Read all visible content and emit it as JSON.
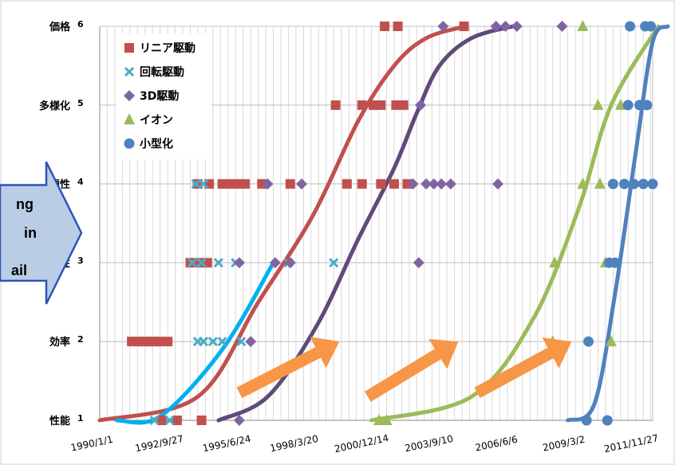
{
  "chart_data": {
    "type": "scatter",
    "title": "",
    "xlabel": "",
    "ylabel": "",
    "xlim": [
      "1990-01-01",
      "2014-06-01"
    ],
    "ylim": [
      1,
      6
    ],
    "grid": true,
    "legend_position": "top-left",
    "x_ticks": [
      "1990/1/1",
      "1992/9/27",
      "1995/6/24",
      "1998/3/20",
      "2000/12/14",
      "2003/9/10",
      "2006/6/6",
      "2009/3/2",
      "2011/11/27"
    ],
    "y_ticks": [
      {
        "value": 1,
        "label": "性能",
        "num": "1"
      },
      {
        "value": 2,
        "label": "効率",
        "num": "2"
      },
      {
        "value": 3,
        "label": "性",
        "num": "3"
      },
      {
        "value": 4,
        "label": "便性",
        "num": "4"
      },
      {
        "value": 5,
        "label": "多様化",
        "num": "5"
      },
      {
        "value": 6,
        "label": "価格",
        "num": "6"
      }
    ],
    "series": [
      {
        "name": "リニア駆動",
        "marker": "square",
        "color": "#c0504d",
        "points": [
          [
            "1991-06-01",
            2
          ],
          [
            "1991-09-01",
            2
          ],
          [
            "1991-12-01",
            2
          ],
          [
            "1992-03-01",
            2
          ],
          [
            "1992-06-01",
            2
          ],
          [
            "1992-09-01",
            2
          ],
          [
            "1993-01-01",
            2
          ],
          [
            "1992-10-01",
            1
          ],
          [
            "1993-06-01",
            1
          ],
          [
            "1994-07-01",
            1
          ],
          [
            "1994-01-01",
            3
          ],
          [
            "1994-06-01",
            3
          ],
          [
            "1994-10-01",
            3
          ],
          [
            "1994-05-01",
            4
          ],
          [
            "1994-11-01",
            4
          ],
          [
            "1995-06-01",
            4
          ],
          [
            "1995-10-01",
            4
          ],
          [
            "1996-02-01",
            4
          ],
          [
            "1996-06-01",
            4
          ],
          [
            "1997-03-01",
            4
          ],
          [
            "1998-06-01",
            4
          ],
          [
            "2000-12-01",
            4
          ],
          [
            "2001-08-01",
            4
          ],
          [
            "2002-06-01",
            4
          ],
          [
            "2003-01-01",
            4
          ],
          [
            "2003-08-01",
            4
          ],
          [
            "2000-06-01",
            5
          ],
          [
            "2001-08-01",
            5
          ],
          [
            "2002-02-01",
            5
          ],
          [
            "2002-06-01",
            5
          ],
          [
            "2003-02-01",
            5
          ],
          [
            "2003-06-01",
            5
          ],
          [
            "2002-08-01",
            6
          ],
          [
            "2003-03-01",
            6
          ],
          [
            "2006-02-01",
            6
          ]
        ]
      },
      {
        "name": "回転駆動",
        "marker": "x",
        "color": "#4bacc6",
        "points": [
          [
            "1992-06-01",
            1
          ],
          [
            "1993-02-01",
            1
          ],
          [
            "1994-05-01",
            2
          ],
          [
            "1994-08-01",
            2
          ],
          [
            "1995-01-01",
            2
          ],
          [
            "1995-06-01",
            2
          ],
          [
            "1996-04-01",
            2
          ],
          [
            "1994-02-01",
            3
          ],
          [
            "1994-07-01",
            3
          ],
          [
            "1995-04-01",
            3
          ],
          [
            "1996-01-01",
            3
          ],
          [
            "1998-05-01",
            3
          ],
          [
            "2000-05-01",
            3
          ],
          [
            "1994-04-01",
            4
          ],
          [
            "1994-08-01",
            4
          ]
        ]
      },
      {
        "name": "3D駆動",
        "marker": "diamond",
        "color": "#8064a2",
        "points": [
          [
            "1996-03-01",
            1
          ],
          [
            "1996-09-01",
            2
          ],
          [
            "1996-03-01",
            3
          ],
          [
            "1997-10-01",
            3
          ],
          [
            "1998-06-01",
            3
          ],
          [
            "2004-02-01",
            3
          ],
          [
            "1997-06-01",
            4
          ],
          [
            "1998-12-01",
            4
          ],
          [
            "2003-11-01",
            4
          ],
          [
            "2004-06-01",
            4
          ],
          [
            "2004-10-01",
            4
          ],
          [
            "2005-02-01",
            4
          ],
          [
            "2005-07-01",
            4
          ],
          [
            "2007-08-01",
            4
          ],
          [
            "2004-03-01",
            5
          ],
          [
            "2005-03-01",
            6
          ],
          [
            "2007-07-01",
            6
          ],
          [
            "2007-12-01",
            6
          ],
          [
            "2008-06-01",
            6
          ],
          [
            "2010-06-01",
            6
          ]
        ]
      },
      {
        "name": "イオン",
        "marker": "triangle",
        "color": "#9bbb59",
        "points": [
          [
            "2002-05-01",
            1
          ],
          [
            "2002-09-01",
            1
          ],
          [
            "2010-01-01",
            2
          ],
          [
            "2012-08-01",
            2
          ],
          [
            "2010-02-01",
            3
          ],
          [
            "2012-05-01",
            3
          ],
          [
            "2011-05-01",
            4
          ],
          [
            "2012-02-01",
            4
          ],
          [
            "2012-01-01",
            5
          ],
          [
            "2013-01-01",
            5
          ],
          [
            "2011-05-01",
            6
          ]
        ]
      },
      {
        "name": "小型化",
        "marker": "circle",
        "color": "#4f81bd",
        "points": [
          [
            "2011-07-01",
            1
          ],
          [
            "2012-06-01",
            1
          ],
          [
            "2011-08-01",
            2
          ],
          [
            "2012-10-01",
            3
          ],
          [
            "2012-07-01",
            3
          ],
          [
            "2012-09-01",
            4
          ],
          [
            "2013-03-01",
            4
          ],
          [
            "2013-08-01",
            4
          ],
          [
            "2014-01-01",
            4
          ],
          [
            "2014-06-01",
            4
          ],
          [
            "2015-02-01",
            4
          ],
          [
            "2013-05-01",
            5
          ],
          [
            "2013-11-01",
            5
          ],
          [
            "2014-03-01",
            5
          ],
          [
            "2013-06-01",
            6
          ],
          [
            "2014-02-01",
            6
          ],
          [
            "2014-05-01",
            6
          ]
        ]
      }
    ],
    "trend_curves": [
      {
        "color": "#c0504d",
        "x": [
          "1990-01-01",
          "1994-05-01",
          "1997-01-01",
          "1999-06-01",
          "2001-06-01",
          "2003-01-01",
          "2004-06-01",
          "2006-03-01"
        ],
        "y": [
          1,
          1.3,
          2.5,
          3.6,
          4.8,
          5.5,
          5.85,
          6
        ]
      },
      {
        "color": "#604a7b",
        "x": [
          "1995-04-01",
          "1997-06-01",
          "1999-08-01",
          "2001-06-01",
          "2003-01-01",
          "2004-01-01",
          "2005-01-01",
          "2006-06-01",
          "2008-04-01"
        ],
        "y": [
          1,
          1.3,
          2.2,
          3.3,
          4.2,
          4.9,
          5.5,
          5.85,
          6
        ]
      },
      {
        "color": "#00b0f0",
        "x": [
          "1990-10-01",
          "1992-09-01",
          "1995-06-01",
          "1997-09-01"
        ],
        "y": [
          1,
          1.05,
          1.9,
          3
        ]
      },
      {
        "color": "#9bbb59",
        "x": [
          "2002-01-01",
          "2006-06-01",
          "2009-03-01",
          "2011-03-01",
          "2012-08-01",
          "2014-09-01"
        ],
        "y": [
          1,
          1.3,
          2.3,
          3.7,
          5,
          6
        ]
      },
      {
        "color": "#4f81bd",
        "x": [
          "2010-09-01",
          "2011-11-01",
          "2012-10-01",
          "2013-09-01",
          "2014-06-01",
          "2015-02-01"
        ],
        "y": [
          1,
          1.2,
          2.6,
          4.4,
          5.8,
          6
        ]
      }
    ],
    "annotations": {
      "callout_lines": [
        "ng",
        "in",
        "ail"
      ],
      "arrows": [
        {
          "from": [
            "1996-03-01",
            1.35
          ],
          "to": [
            "2000-08-01",
            2
          ]
        },
        {
          "from": [
            "2001-11-01",
            1.3
          ],
          "to": [
            "2005-11-01",
            2
          ]
        },
        {
          "from": [
            "2006-09-01",
            1.35
          ],
          "to": [
            "2010-11-01",
            2
          ]
        }
      ]
    }
  }
}
